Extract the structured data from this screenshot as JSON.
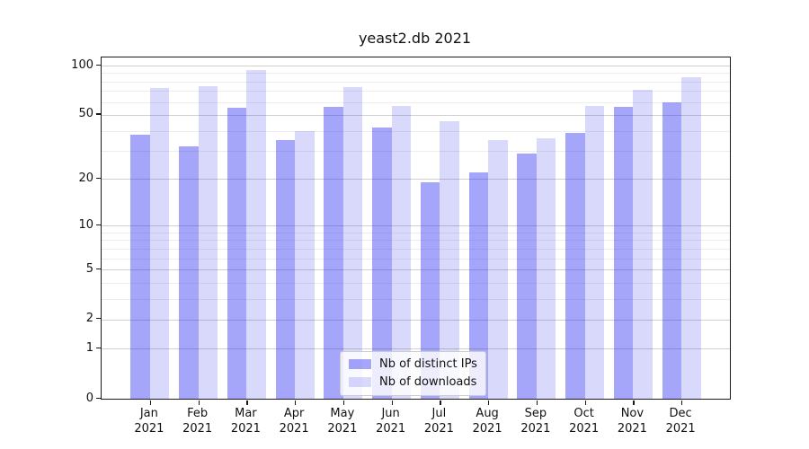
{
  "chart_data": {
    "type": "bar",
    "title": "yeast2.db 2021",
    "yscale": "log1p",
    "ylim": [
      0,
      112
    ],
    "yticks": [
      100,
      50,
      20,
      10,
      5,
      2,
      1,
      0
    ],
    "yticks_minor": [
      3,
      4,
      6,
      7,
      8,
      9,
      30,
      40,
      60,
      70,
      80,
      90
    ],
    "grid": true,
    "legend_position": "lower center",
    "categories": [
      "Jan",
      "Feb",
      "Mar",
      "Apr",
      "May",
      "Jun",
      "Jul",
      "Aug",
      "Sep",
      "Oct",
      "Nov",
      "Dec"
    ],
    "category_year": "2021",
    "series": [
      {
        "name": "Nb of distinct IPs",
        "color": "rgba(30,30,240,0.40)",
        "values": [
          38,
          32,
          55,
          35,
          56,
          42,
          19,
          22,
          29,
          39,
          56,
          60
        ]
      },
      {
        "name": "Nb of downloads",
        "color": "rgba(30,30,240,0.17)",
        "values": [
          73,
          75,
          94,
          40,
          74,
          57,
          46,
          35,
          36,
          57,
          71,
          85
        ]
      }
    ]
  }
}
